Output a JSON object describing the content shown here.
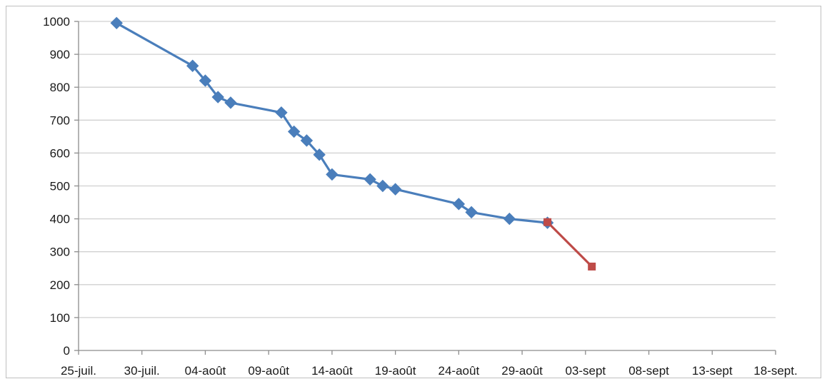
{
  "chart_data": {
    "type": "line",
    "title": "",
    "xlabel": "",
    "ylabel": "",
    "legend": "none",
    "grid": "horizontal",
    "ylim": [
      0,
      1000
    ],
    "yticks": [
      0,
      100,
      200,
      300,
      400,
      500,
      600,
      700,
      800,
      900,
      1000
    ],
    "xtick_labels": [
      "25-juil.",
      "30-juil.",
      "04-août",
      "09-août",
      "14-août",
      "19-août",
      "24-août",
      "29-août",
      "03-sept",
      "08-sept",
      "13-sept",
      "18-sept."
    ],
    "xlim_days": [
      0,
      55
    ],
    "series": [
      {
        "color": "#4a7ebb",
        "marker": "diamond",
        "points": [
          {
            "x": 3,
            "y": 995
          },
          {
            "x": 9,
            "y": 865
          },
          {
            "x": 10,
            "y": 820
          },
          {
            "x": 11,
            "y": 770
          },
          {
            "x": 12,
            "y": 753
          },
          {
            "x": 16,
            "y": 723
          },
          {
            "x": 17,
            "y": 665
          },
          {
            "x": 18,
            "y": 638
          },
          {
            "x": 19,
            "y": 595
          },
          {
            "x": 20,
            "y": 535
          },
          {
            "x": 23,
            "y": 520
          },
          {
            "x": 24,
            "y": 500
          },
          {
            "x": 25,
            "y": 490
          },
          {
            "x": 30,
            "y": 445
          },
          {
            "x": 31,
            "y": 420
          },
          {
            "x": 34,
            "y": 400
          },
          {
            "x": 37,
            "y": 388
          }
        ]
      },
      {
        "color": "#be4b48",
        "marker": "square",
        "points": [
          {
            "x": 37,
            "y": 390
          },
          {
            "x": 40.5,
            "y": 255
          }
        ]
      }
    ]
  }
}
